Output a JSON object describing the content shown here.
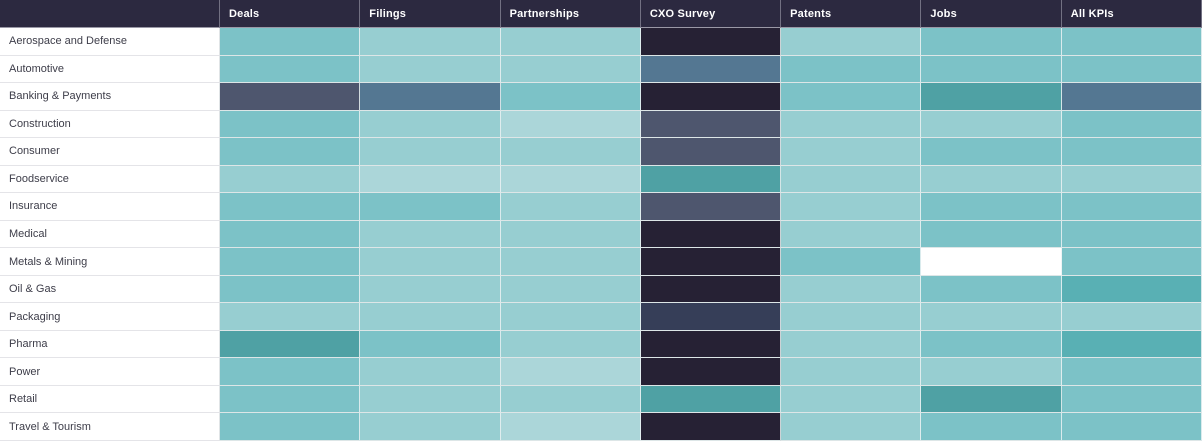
{
  "palette": {
    "t1": "#abd6d9",
    "t2": "#97ced1",
    "t3": "#7cc2c7",
    "t4": "#59b0b4",
    "t5": "#4fa1a4",
    "b3": "#547792",
    "b2": "#4e566e",
    "b1": "#363e58",
    "b0": "#262134",
    "w": "#ffffff",
    "header_bg": "#2c2940",
    "header_text": "#ffffff",
    "row_label_bg": "#ffffff",
    "row_label_text": "#3d3d49"
  },
  "chart_data": {
    "type": "heatmap",
    "columns": [
      "Deals",
      "Filings",
      "Partnerships",
      "CXO Survey",
      "Patents",
      "Jobs",
      "All KPIs"
    ],
    "legend_position": "none",
    "cell_values_shown": false,
    "level_colors": {
      "t1": "#abd6d9",
      "t2": "#97ced1",
      "t3": "#7cc2c7",
      "t4": "#59b0b4",
      "t5": "#4fa1a4",
      "b3": "#547792",
      "b2": "#4e566e",
      "b1": "#363e58",
      "b0": "#262134",
      "w": "#ffffff"
    },
    "rows": [
      {
        "label": "Aerospace and Defense",
        "cells": [
          "t3",
          "t2",
          "t2",
          "b0",
          "t2",
          "t3",
          "t3"
        ]
      },
      {
        "label": "Automotive",
        "cells": [
          "t3",
          "t2",
          "t2",
          "b3",
          "t3",
          "t3",
          "t3"
        ]
      },
      {
        "label": "Banking & Payments",
        "cells": [
          "b2",
          "b3",
          "t3",
          "b0",
          "t3",
          "t5",
          "b3"
        ]
      },
      {
        "label": "Construction",
        "cells": [
          "t3",
          "t2",
          "t1",
          "b2",
          "t2",
          "t2",
          "t3"
        ]
      },
      {
        "label": "Consumer",
        "cells": [
          "t3",
          "t2",
          "t2",
          "b2",
          "t2",
          "t3",
          "t3"
        ]
      },
      {
        "label": "Foodservice",
        "cells": [
          "t2",
          "t1",
          "t1",
          "t5",
          "t2",
          "t2",
          "t2"
        ]
      },
      {
        "label": "Insurance",
        "cells": [
          "t3",
          "t3",
          "t2",
          "b2",
          "t2",
          "t3",
          "t3"
        ]
      },
      {
        "label": "Medical",
        "cells": [
          "t3",
          "t2",
          "t2",
          "b0",
          "t2",
          "t3",
          "t3"
        ]
      },
      {
        "label": "Metals & Mining",
        "cells": [
          "t3",
          "t2",
          "t2",
          "b0",
          "t3",
          "w",
          "t3"
        ]
      },
      {
        "label": "Oil & Gas",
        "cells": [
          "t3",
          "t2",
          "t2",
          "b0",
          "t2",
          "t3",
          "t4"
        ]
      },
      {
        "label": "Packaging",
        "cells": [
          "t2",
          "t2",
          "t2",
          "b1",
          "t2",
          "t2",
          "t2"
        ]
      },
      {
        "label": "Pharma",
        "cells": [
          "t5",
          "t3",
          "t2",
          "b0",
          "t2",
          "t3",
          "t4"
        ]
      },
      {
        "label": "Power",
        "cells": [
          "t3",
          "t2",
          "t1",
          "b0",
          "t2",
          "t2",
          "t3"
        ]
      },
      {
        "label": "Retail",
        "cells": [
          "t3",
          "t2",
          "t2",
          "t5",
          "t2",
          "t5",
          "t3"
        ]
      },
      {
        "label": "Travel & Tourism",
        "cells": [
          "t3",
          "t2",
          "t1",
          "b0",
          "t2",
          "t3",
          "t3"
        ]
      }
    ]
  }
}
